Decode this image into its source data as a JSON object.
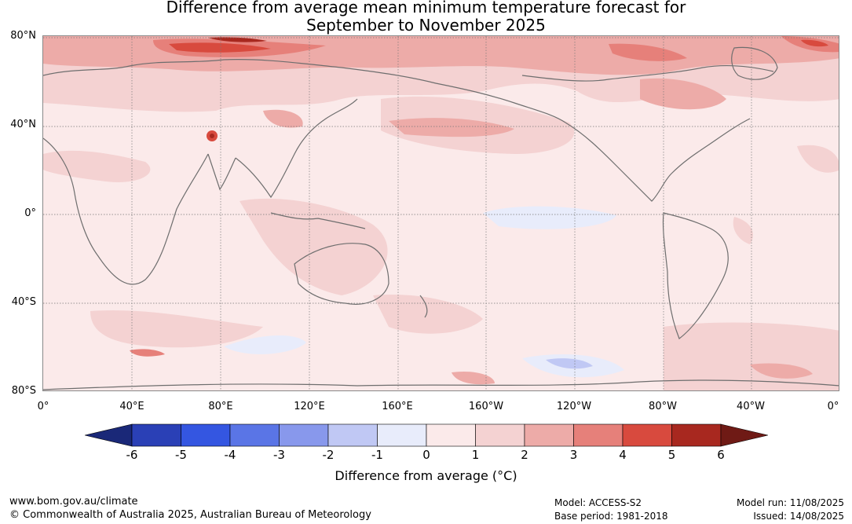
{
  "title": {
    "line1": "Difference from average mean minimum temperature forecast for",
    "line2": "September to November 2025"
  },
  "map": {
    "lat_labels": [
      "80°N",
      "40°N",
      "0°",
      "40°S",
      "80°S"
    ],
    "lon_labels": [
      "0°",
      "40°E",
      "80°E",
      "120°E",
      "160°E",
      "160°W",
      "120°W",
      "80°W",
      "40°W",
      "0°"
    ],
    "colors": {
      "ocean_base": "#fbeaea",
      "gridline": "#777777",
      "coastline": "#6e6e6e"
    }
  },
  "colorbar": {
    "title": "Difference from average (°C)",
    "tick_labels": [
      "-6",
      "-5",
      "-4",
      "-3",
      "-2",
      "-1",
      "0",
      "1",
      "2",
      "3",
      "4",
      "5",
      "6"
    ],
    "colors": [
      "#1a2878",
      "#2a40b6",
      "#3456e1",
      "#5a75e6",
      "#8898ec",
      "#c0c8f4",
      "#e8ecfb",
      "#fbeaea",
      "#f4d2d2",
      "#edaba8",
      "#e6807a",
      "#d84a3e",
      "#a8281f",
      "#6f1a15"
    ]
  },
  "footer": {
    "url": "www.bom.gov.au/climate",
    "copyright": "© Commonwealth of Australia 2025, Australian Bureau of Meteorology",
    "model": "Model: ACCESS-S2",
    "base_period": "Base period: 1981-2018",
    "model_run": "Model run: 11/08/2025",
    "issued": "Issued: 14/08/2025"
  }
}
